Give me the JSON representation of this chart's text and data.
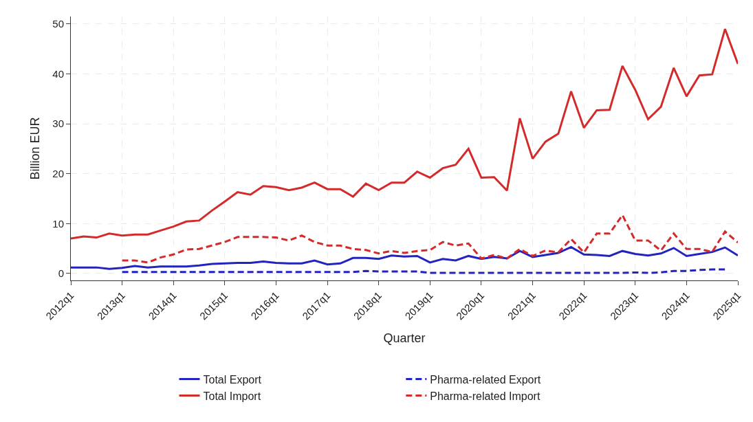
{
  "chart_data": {
    "type": "line",
    "xlabel": "Quarter",
    "ylabel": "Billion EUR",
    "categories": [
      "2012q1",
      null,
      null,
      null,
      "2013q1",
      null,
      null,
      null,
      "2014q1",
      null,
      null,
      null,
      "2015q1",
      null,
      null,
      null,
      "2016q1",
      null,
      null,
      null,
      "2017q1",
      null,
      null,
      null,
      "2018q1",
      null,
      null,
      null,
      "2019q1",
      null,
      null,
      null,
      "2020q1",
      null,
      null,
      null,
      "2021q1",
      null,
      null,
      null,
      "2022q1",
      null,
      null,
      null,
      "2023q1",
      null,
      null,
      null,
      "2024q1",
      null,
      null,
      null,
      "2025q1"
    ],
    "ylim": [
      -1.4,
      51.5
    ],
    "yticks": [
      0,
      10,
      20,
      30,
      40,
      50
    ],
    "grid": true,
    "legend": "bottom",
    "marker": "none",
    "series": [
      {
        "name": "Total Export",
        "color": "#2323c0",
        "line_style": "solid",
        "values": [
          1.2,
          1.2,
          1.2,
          0.9,
          1.1,
          1.5,
          1.2,
          1.4,
          1.4,
          1.4,
          1.6,
          1.9,
          2.0,
          2.1,
          2.1,
          2.4,
          2.1,
          2.0,
          2.0,
          2.6,
          1.8,
          2.0,
          3.1,
          3.1,
          2.9,
          3.6,
          3.4,
          3.5,
          2.2,
          2.9,
          2.6,
          3.5,
          2.9,
          3.3,
          3.0,
          4.5,
          3.3,
          3.7,
          4.1,
          5.3,
          3.8,
          3.7,
          3.5,
          4.5,
          3.9,
          3.6,
          4.0,
          5.1,
          3.5,
          3.9,
          4.3,
          5.2,
          3.6
        ]
      },
      {
        "name": "Pharma-related Export",
        "color": "#2323c0",
        "line_style": "dashed",
        "values": [
          null,
          null,
          null,
          null,
          0.3,
          0.3,
          0.3,
          0.3,
          0.3,
          0.3,
          0.3,
          0.3,
          0.3,
          0.3,
          0.3,
          0.3,
          0.3,
          0.3,
          0.3,
          0.3,
          0.3,
          0.3,
          0.3,
          0.5,
          0.4,
          0.4,
          0.4,
          0.4,
          0.1,
          0.1,
          0.1,
          0.1,
          0.1,
          0.1,
          0.1,
          0.1,
          0.1,
          0.1,
          0.1,
          0.1,
          0.1,
          0.1,
          0.1,
          0.1,
          0.2,
          0.1,
          0.2,
          0.5,
          0.5,
          0.7,
          0.8,
          0.8,
          null
        ]
      },
      {
        "name": "Total Import",
        "color": "#d42a2a",
        "line_style": "solid",
        "values": [
          7.0,
          7.4,
          7.2,
          8.0,
          7.6,
          7.8,
          7.8,
          8.6,
          9.4,
          10.4,
          10.6,
          12.6,
          14.4,
          16.3,
          15.8,
          17.5,
          17.3,
          16.7,
          17.2,
          18.2,
          16.9,
          16.9,
          15.4,
          18.0,
          16.7,
          18.2,
          18.2,
          20.4,
          19.2,
          21.1,
          21.8,
          25.0,
          19.2,
          19.3,
          16.6,
          31.1,
          23.0,
          26.4,
          28.0,
          36.5,
          29.2,
          32.7,
          32.8,
          41.6,
          36.8,
          30.9,
          33.4,
          41.2,
          35.5,
          39.7,
          39.9,
          49.0,
          42.0
        ]
      },
      {
        "name": "Pharma-related Import",
        "color": "#d42a2a",
        "line_style": "dashed",
        "values": [
          null,
          null,
          null,
          null,
          2.6,
          2.6,
          2.2,
          3.2,
          3.8,
          4.8,
          4.9,
          5.6,
          6.3,
          7.3,
          7.3,
          7.3,
          7.2,
          6.6,
          7.6,
          6.3,
          5.6,
          5.6,
          4.9,
          4.7,
          4.0,
          4.5,
          4.1,
          4.5,
          4.7,
          6.3,
          5.6,
          6.0,
          3.0,
          3.7,
          3.0,
          4.9,
          3.5,
          4.6,
          4.2,
          6.9,
          4.2,
          8.0,
          8.0,
          11.7,
          6.6,
          6.6,
          4.6,
          8.0,
          4.9,
          4.9,
          4.3,
          8.4,
          6.2
        ]
      }
    ]
  }
}
